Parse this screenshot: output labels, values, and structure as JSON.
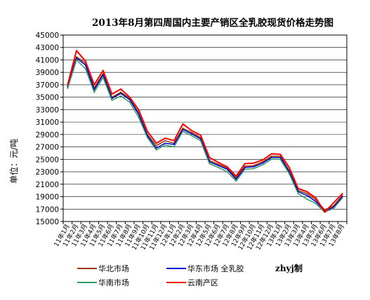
{
  "chart_data": {
    "type": "line",
    "title": "2013年8月第四周国内主要产销区全乳胶现货价格走势图",
    "ylabel": "单位：元/吨",
    "xlabel": "",
    "ylim": [
      15000,
      45000
    ],
    "yticks": [
      "45000",
      "43000",
      "41000",
      "39000",
      "37000",
      "35000",
      "33000",
      "31000",
      "29000",
      "27000",
      "25000",
      "23000",
      "21000",
      "19000",
      "17000",
      "15000"
    ],
    "x_tick_labels": [
      "11年1月",
      "11年2月",
      "11年3月",
      "11年4月",
      "11年5月",
      "11年6月",
      "11年7月",
      "11年8月",
      "11年9月",
      "11年10月",
      "11年11月",
      "11年12月",
      "12年1月",
      "12年2月",
      "12年3月",
      "12年4月",
      "12年5月",
      "12年6月",
      "12年7月",
      "12年8月",
      "12年9月",
      "12年10月",
      "12年11月",
      "12年12月",
      "13年1月",
      "13年2月",
      "13年3月",
      "13年4月",
      "13年5月",
      "13年6月",
      "13年7月",
      "13年8月"
    ],
    "grid": true,
    "legend_position": "bottom",
    "x": [
      "2011-01",
      "2011-02",
      "2011-03",
      "2011-04",
      "2011-05",
      "2011-06",
      "2011-07",
      "2011-08",
      "2011-09",
      "2011-10",
      "2011-11",
      "2011-12",
      "2012-01",
      "2012-02",
      "2012-03",
      "2012-04",
      "2012-05",
      "2012-06",
      "2012-07",
      "2012-08",
      "2012-09",
      "2012-10",
      "2012-11",
      "2012-12",
      "2013-01",
      "2013-02",
      "2013-03",
      "2013-04",
      "2013-05",
      "2013-06",
      "2013-07",
      "2013-08"
    ],
    "series": [
      {
        "name": "华北市场",
        "color": "#993300",
        "values": [
          36800,
          41500,
          40500,
          36500,
          38800,
          35000,
          35800,
          34800,
          32500,
          29000,
          27200,
          28000,
          27600,
          30000,
          29300,
          28500,
          24800,
          24200,
          23600,
          22000,
          23900,
          24000,
          24600,
          25500,
          25500,
          23200,
          20000,
          19500,
          18500,
          16900,
          17500,
          19200
        ]
      },
      {
        "name": "华东市场 全乳胶",
        "color": "#0000CC",
        "values": [
          36600,
          41300,
          40200,
          36200,
          38600,
          34800,
          35600,
          34600,
          32300,
          28800,
          26800,
          27600,
          27400,
          29800,
          29100,
          28300,
          24600,
          24000,
          23400,
          21800,
          23700,
          23800,
          24400,
          25300,
          25300,
          23000,
          19800,
          19200,
          18200,
          16700,
          17300,
          19000
        ]
      },
      {
        "name": "华南市场",
        "color": "#339966",
        "values": [
          36400,
          41000,
          39600,
          35800,
          38200,
          34500,
          35200,
          34200,
          31800,
          28500,
          26500,
          27300,
          27000,
          29500,
          28800,
          28000,
          24300,
          23700,
          23000,
          21500,
          23400,
          23500,
          24100,
          25000,
          25000,
          22700,
          19500,
          18600,
          17900,
          16500,
          17100,
          18800
        ]
      },
      {
        "name": "云南产区",
        "color": "#FF0000",
        "values": [
          37000,
          42500,
          40800,
          37000,
          39300,
          35500,
          36300,
          35000,
          33000,
          29500,
          27600,
          28400,
          28000,
          30700,
          29600,
          28900,
          25300,
          24500,
          23800,
          22300,
          24300,
          24400,
          24900,
          25900,
          25800,
          23700,
          20300,
          19800,
          18800,
          16500,
          18000,
          19500
        ]
      }
    ],
    "annotation": "zhyj制"
  },
  "legend": [
    {
      "label": "华北市场",
      "color": "#993300"
    },
    {
      "label": "华东市场 全乳胶",
      "color": "#0000CC"
    },
    {
      "label": "华南市场",
      "color": "#339966"
    },
    {
      "label": "云南产区",
      "color": "#FF0000"
    }
  ]
}
